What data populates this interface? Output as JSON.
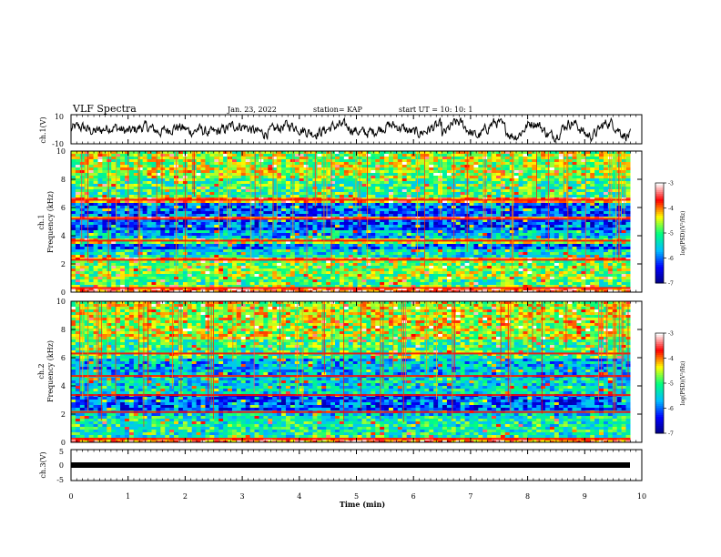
{
  "header": {
    "title": "VLF Spectra",
    "date": "Jan. 23, 2022",
    "station": "station= KAP",
    "start_ut": "start  UT =   10: 10: 1"
  },
  "chart_data": [
    {
      "type": "line",
      "name": "ch1-waveform",
      "ylabel": "ch.1(V)",
      "ylim": [
        -10,
        10
      ],
      "yticks": [
        "10",
        "-10"
      ],
      "xlim": [
        0,
        10
      ],
      "x_end": 9.8,
      "description_values": {
        "baseline": 0,
        "amplitude_range": [
          -10,
          10
        ]
      }
    },
    {
      "type": "heatmap",
      "name": "ch1-spectrogram",
      "ylabel_top": "ch.1",
      "ylabel": "Frequency  (kHz)",
      "yticks": [
        "0",
        "2",
        "4",
        "6",
        "8",
        "10"
      ],
      "ylim": [
        0,
        10
      ],
      "xlim": [
        0,
        10
      ],
      "x_end": 9.8,
      "bands": [
        {
          "f0": 0.0,
          "f1": 0.25,
          "level": -3.6
        },
        {
          "f0": 0.25,
          "f1": 0.45,
          "level": -4.8
        },
        {
          "f0": 0.45,
          "f1": 1.0,
          "level": -5.0
        },
        {
          "f0": 1.0,
          "f1": 2.2,
          "level": -4.7
        },
        {
          "f0": 2.2,
          "f1": 2.4,
          "level": -3.9
        },
        {
          "f0": 2.4,
          "f1": 3.0,
          "level": -5.3
        },
        {
          "f0": 3.0,
          "f1": 3.5,
          "level": -5.9
        },
        {
          "f0": 3.5,
          "f1": 3.8,
          "level": -4.6
        },
        {
          "f0": 3.8,
          "f1": 4.4,
          "level": -5.6
        },
        {
          "f0": 4.4,
          "f1": 5.1,
          "level": -6.1
        },
        {
          "f0": 5.1,
          "f1": 5.3,
          "level": -3.9
        },
        {
          "f0": 5.3,
          "f1": 6.4,
          "level": -6.0
        },
        {
          "f0": 6.4,
          "f1": 6.7,
          "level": -4.0
        },
        {
          "f0": 6.7,
          "f1": 8.0,
          "level": -5.0
        },
        {
          "f0": 8.0,
          "f1": 10.0,
          "level": -4.6
        }
      ],
      "lines_khz": [
        0.3,
        2.3,
        3.65,
        5.2,
        6.55
      ]
    },
    {
      "type": "heatmap",
      "name": "ch2-spectrogram",
      "ylabel_top": "ch.2",
      "ylabel": "Frequency  (kHz)",
      "yticks": [
        "0",
        "2",
        "4",
        "6",
        "8",
        "10"
      ],
      "ylim": [
        0,
        10
      ],
      "xlim": [
        0,
        10
      ],
      "x_end": 9.8,
      "bands": [
        {
          "f0": 0.0,
          "f1": 0.3,
          "level": -3.8
        },
        {
          "f0": 0.3,
          "f1": 1.8,
          "level": -5.2
        },
        {
          "f0": 1.8,
          "f1": 2.2,
          "level": -5.5
        },
        {
          "f0": 2.2,
          "f1": 3.4,
          "level": -6.1
        },
        {
          "f0": 3.4,
          "f1": 4.6,
          "level": -5.4
        },
        {
          "f0": 4.6,
          "f1": 6.0,
          "level": -5.6
        },
        {
          "f0": 6.0,
          "f1": 7.2,
          "level": -5.0
        },
        {
          "f0": 7.2,
          "f1": 10.0,
          "level": -4.5
        }
      ],
      "lines_khz": [
        0.25,
        2.15,
        3.35,
        4.7,
        6.3
      ]
    },
    {
      "type": "line",
      "name": "ch3-waveform",
      "ylabel": "ch.3(V)",
      "ylim": [
        -5,
        5
      ],
      "yticks": [
        "5",
        "0",
        "-5"
      ],
      "xlim": [
        0,
        10
      ],
      "x_end": 9.8,
      "values_range": [
        -0.5,
        0.5
      ]
    }
  ],
  "xaxis": {
    "label": "Time  (min)",
    "ticks": [
      "0",
      "1",
      "2",
      "3",
      "4",
      "5",
      "6",
      "7",
      "8",
      "9",
      "10"
    ]
  },
  "colorbar": {
    "label": "log(PSD)(V²/Hz)",
    "ticks": [
      "-3",
      "-4",
      "-5",
      "-6",
      "-7"
    ],
    "range": [
      -7,
      -3
    ],
    "colors": [
      "#000080",
      "#0000ff",
      "#00c0ff",
      "#00ff80",
      "#ffff00",
      "#ff0000",
      "#ffffff"
    ]
  }
}
